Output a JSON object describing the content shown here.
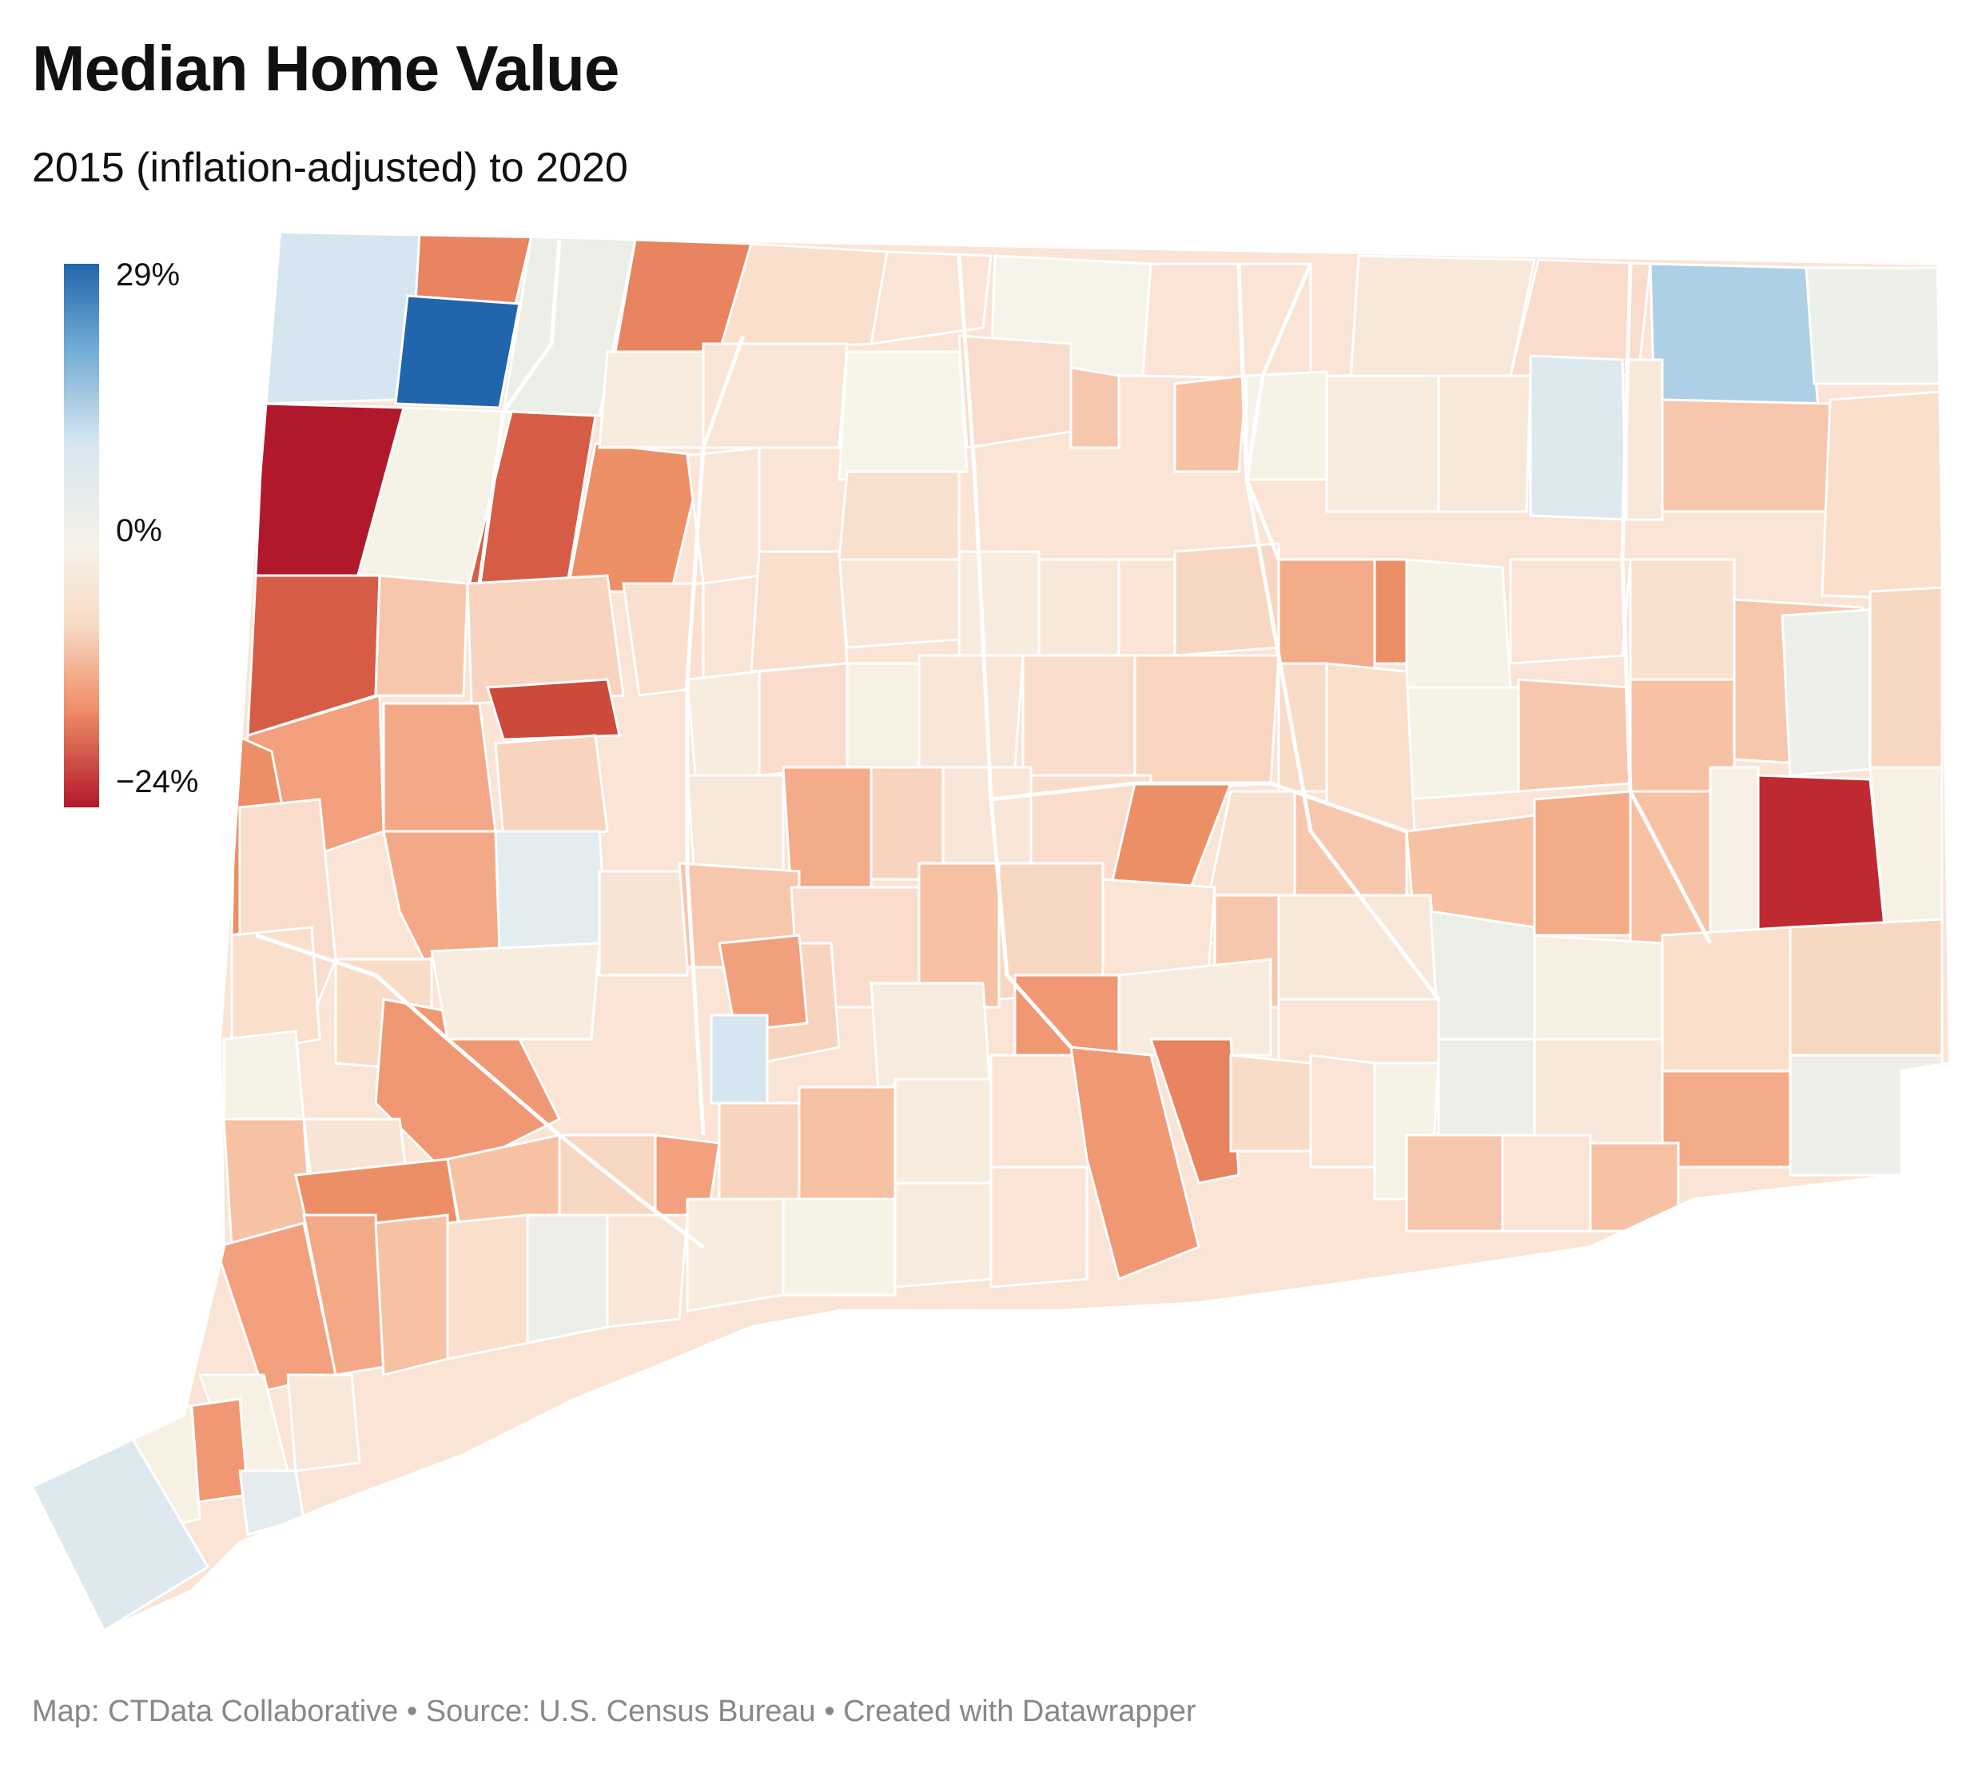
{
  "title": "Median Home Value",
  "subtitle": "2015 (inflation-adjusted) to 2020",
  "legend": {
    "max": "29%",
    "mid": "0%",
    "min": "−24%"
  },
  "colors": {
    "strong_blue": "#2166ac",
    "light_blue": "#aed0e6",
    "pale_blue": "#d6e6f0",
    "neutral": "#f5f3e8",
    "pale_orange": "#f9e4d6",
    "light_orange": "#f7c7ad",
    "orange": "#ef9873",
    "dark_orange": "#de6248",
    "red": "#b2182b"
  },
  "footer": "Map: CTData Collaborative • Source: U.S. Census Bureau • Created with Datawrapper"
}
